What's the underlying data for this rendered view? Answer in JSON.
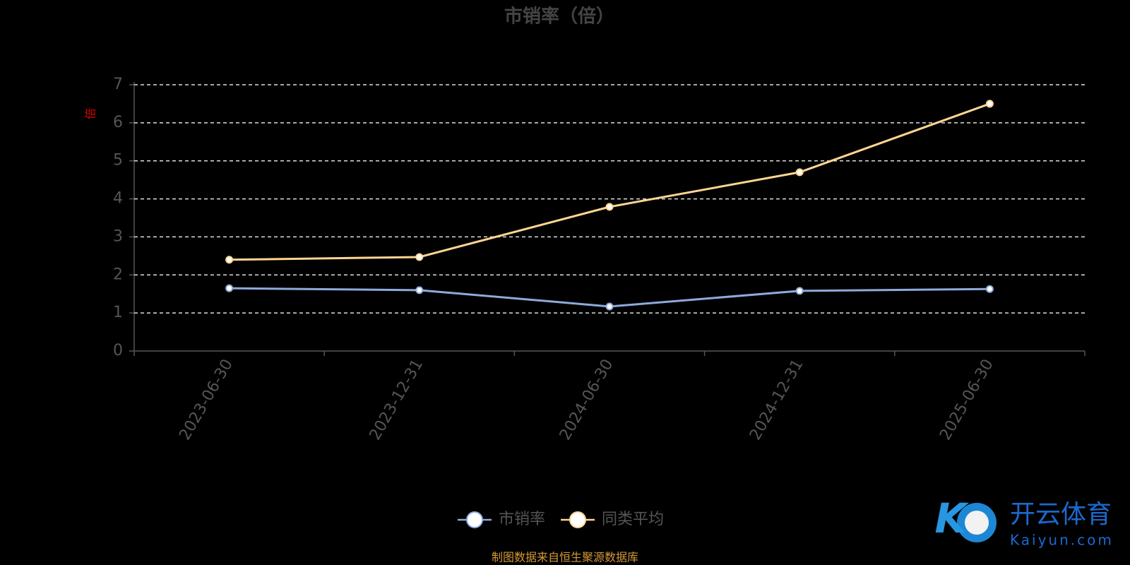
{
  "chart_data": {
    "type": "line",
    "title": "市销率（倍）",
    "y_label": "倍",
    "categories": [
      "2023-06-30",
      "2023-12-31",
      "2024-06-30",
      "2024-12-31",
      "2025-06-30"
    ],
    "series": [
      {
        "name": "市销率",
        "color": "#8eaadb",
        "values": [
          1.65,
          1.6,
          1.17,
          1.58,
          1.63
        ]
      },
      {
        "name": "同类平均",
        "color": "#ffd591",
        "values": [
          2.4,
          2.47,
          3.79,
          4.7,
          6.5
        ]
      }
    ],
    "ylim": [
      0,
      7
    ],
    "yticks": [
      0,
      1,
      2,
      3,
      4,
      5,
      6,
      7
    ],
    "grid": true,
    "legend": "bottom",
    "source": "制图数据来自恒生聚源数据库",
    "watermark": {
      "name": "开云体育",
      "site": "Kaiyun.com"
    }
  }
}
